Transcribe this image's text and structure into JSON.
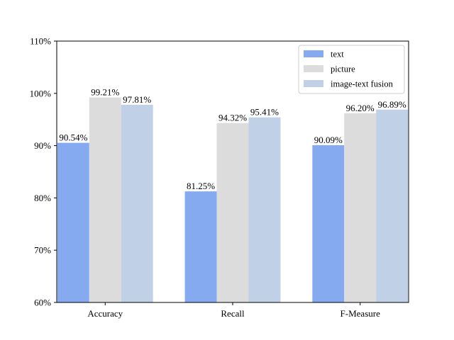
{
  "chart_data": {
    "type": "bar",
    "title": "",
    "xlabel": "",
    "ylabel": "",
    "categories": [
      "Accuracy",
      "Recall",
      "F-Measure"
    ],
    "series": [
      {
        "name": "text",
        "values": [
          90.54,
          81.25,
          90.09
        ],
        "labels": [
          "90.54%",
          "81.25%",
          "90.09%"
        ],
        "color": "#85aaef"
      },
      {
        "name": "picture",
        "values": [
          99.21,
          94.32,
          96.2
        ],
        "labels": [
          "99.21%",
          "94.32%",
          "96.20%"
        ],
        "color": "#dcdcdc"
      },
      {
        "name": "image-text fusion",
        "values": [
          97.81,
          95.41,
          96.89
        ],
        "labels": [
          "97.81%",
          "95.41%",
          "96.89%"
        ],
        "color": "#c0d0e6"
      }
    ],
    "ylim": [
      60,
      110
    ],
    "yticks": [
      60,
      70,
      80,
      90,
      100,
      110
    ],
    "ytick_labels": [
      "60%",
      "70%",
      "80%",
      "90%",
      "100%",
      "110%"
    ],
    "grid": false,
    "legend_position": "top-right"
  }
}
